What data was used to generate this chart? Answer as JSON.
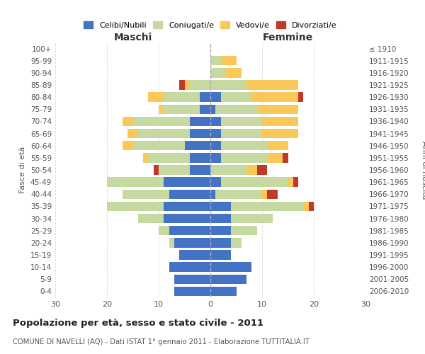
{
  "age_groups": [
    "0-4",
    "5-9",
    "10-14",
    "15-19",
    "20-24",
    "25-29",
    "30-34",
    "35-39",
    "40-44",
    "45-49",
    "50-54",
    "55-59",
    "60-64",
    "65-69",
    "70-74",
    "75-79",
    "80-84",
    "85-89",
    "90-94",
    "95-99",
    "100+"
  ],
  "birth_years": [
    "2006-2010",
    "2001-2005",
    "1996-2000",
    "1991-1995",
    "1986-1990",
    "1981-1985",
    "1976-1980",
    "1971-1975",
    "1966-1970",
    "1961-1965",
    "1956-1960",
    "1951-1955",
    "1946-1950",
    "1941-1945",
    "1936-1940",
    "1931-1935",
    "1926-1930",
    "1921-1925",
    "1916-1920",
    "1911-1915",
    "≤ 1910"
  ],
  "maschi": {
    "celibi": [
      7,
      7,
      8,
      6,
      7,
      8,
      9,
      9,
      8,
      9,
      4,
      4,
      5,
      4,
      4,
      2,
      2,
      0,
      0,
      0,
      0
    ],
    "coniugati": [
      0,
      0,
      0,
      0,
      1,
      2,
      5,
      11,
      9,
      11,
      6,
      8,
      10,
      10,
      11,
      7,
      7,
      4,
      0,
      0,
      0
    ],
    "vedovi": [
      0,
      0,
      0,
      0,
      0,
      0,
      0,
      0,
      0,
      0,
      0,
      1,
      2,
      2,
      2,
      1,
      3,
      1,
      0,
      0,
      0
    ],
    "divorziati": [
      0,
      0,
      0,
      0,
      0,
      0,
      0,
      0,
      0,
      0,
      1,
      0,
      0,
      0,
      0,
      0,
      0,
      1,
      0,
      0,
      0
    ]
  },
  "femmine": {
    "nubili": [
      5,
      7,
      8,
      4,
      4,
      4,
      4,
      4,
      1,
      2,
      0,
      2,
      2,
      2,
      2,
      1,
      2,
      0,
      0,
      0,
      0
    ],
    "coniugate": [
      0,
      0,
      0,
      0,
      2,
      5,
      8,
      14,
      9,
      13,
      7,
      9,
      9,
      8,
      8,
      8,
      6,
      7,
      3,
      2,
      0
    ],
    "vedove": [
      0,
      0,
      0,
      0,
      0,
      0,
      0,
      1,
      1,
      1,
      2,
      3,
      4,
      7,
      7,
      8,
      9,
      10,
      3,
      3,
      0
    ],
    "divorziate": [
      0,
      0,
      0,
      0,
      0,
      0,
      0,
      1,
      2,
      1,
      2,
      1,
      0,
      0,
      0,
      0,
      1,
      0,
      0,
      0,
      0
    ]
  },
  "colors": {
    "celibi_nubili": "#4472C4",
    "coniugati_e": "#C5D9A0",
    "vedovi_e": "#FAC858",
    "divorziati_e": "#C0392B"
  },
  "xlim": 30,
  "title": "Popolazione per età, sesso e stato civile - 2011",
  "subtitle": "COMUNE DI NAVELLI (AQ) - Dati ISTAT 1° gennaio 2011 - Elaborazione TUTTITALIA.IT",
  "ylabel_left": "Fasce di età",
  "ylabel_right": "Anni di nascita",
  "xlabel_left": "Maschi",
  "xlabel_right": "Femmine",
  "background_color": "#ffffff",
  "grid_color": "#dddddd"
}
